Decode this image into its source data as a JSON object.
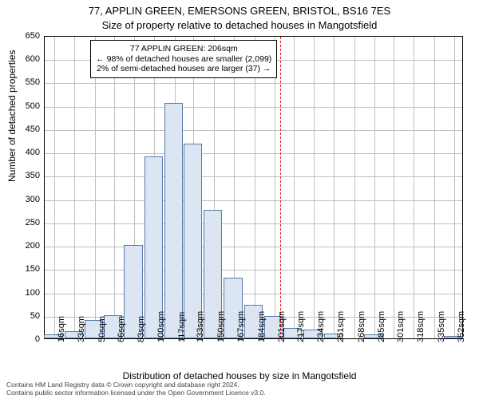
{
  "title_line1": "77, APPLIN GREEN, EMERSONS GREEN, BRISTOL, BS16 7ES",
  "title_line2": "Size of property relative to detached houses in Mangotsfield",
  "y_axis_label": "Number of detached properties",
  "x_axis_label": "Distribution of detached houses by size in Mangotsfield",
  "footer_line1": "Contains HM Land Registry data © Crown copyright and database right 2024.",
  "footer_line2": "Contains public sector information licensed under the Open Government Licence v3.0.",
  "callout": {
    "line1": "77 APPLIN GREEN: 206sqm",
    "line2": "← 98% of detached houses are smaller (2,099)",
    "line3": "2% of semi-detached houses are larger (37) →"
  },
  "chart": {
    "type": "histogram",
    "xlim": [
      8,
      360
    ],
    "ylim": [
      0,
      650
    ],
    "y_ticks": [
      0,
      50,
      100,
      150,
      200,
      250,
      300,
      350,
      400,
      450,
      500,
      550,
      600,
      650
    ],
    "x_ticks": [
      16,
      33,
      50,
      66,
      83,
      100,
      117,
      133,
      150,
      167,
      184,
      201,
      217,
      234,
      251,
      268,
      285,
      301,
      318,
      335,
      352
    ],
    "x_tick_suffix": "sqm",
    "bar_color": "#dce6f2",
    "bar_border": "#5a7aaa",
    "grid_color": "#c0c0c0",
    "background_color": "#ffffff",
    "marker_x": 206,
    "marker_color": "#e02020",
    "title_fontsize": 13,
    "label_fontsize": 12,
    "tick_fontsize": 11,
    "callout_fontsize": 10.5,
    "footer_fontsize": 8.5,
    "bars": [
      {
        "x": 16,
        "v": 8
      },
      {
        "x": 33,
        "v": 15
      },
      {
        "x": 50,
        "v": 40
      },
      {
        "x": 66,
        "v": 50
      },
      {
        "x": 83,
        "v": 200
      },
      {
        "x": 100,
        "v": 390
      },
      {
        "x": 117,
        "v": 505
      },
      {
        "x": 133,
        "v": 418
      },
      {
        "x": 150,
        "v": 275
      },
      {
        "x": 167,
        "v": 130
      },
      {
        "x": 184,
        "v": 72
      },
      {
        "x": 201,
        "v": 48
      },
      {
        "x": 217,
        "v": 22
      },
      {
        "x": 234,
        "v": 18
      },
      {
        "x": 251,
        "v": 10
      },
      {
        "x": 268,
        "v": 0
      },
      {
        "x": 285,
        "v": 8
      },
      {
        "x": 301,
        "v": 0
      },
      {
        "x": 318,
        "v": 0
      },
      {
        "x": 335,
        "v": 0
      },
      {
        "x": 352,
        "v": 5
      }
    ]
  }
}
